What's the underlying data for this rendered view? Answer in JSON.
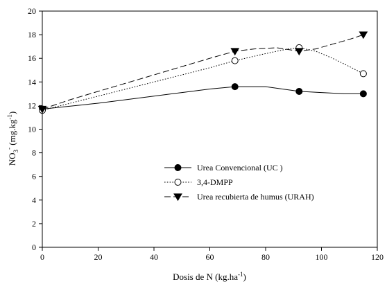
{
  "chart_data": {
    "type": "line",
    "xlabel": "Dosis de N (kg.ha",
    "xlabel_sup": "-1",
    "xlabel_tail": ")",
    "ylabel_main": "NO",
    "ylabel_sub": "3",
    "ylabel_sup": "-",
    "ylabel_tail": " (mg.kg",
    "ylabel_sup2": "-1",
    "ylabel_tail2": ")",
    "xlim": [
      0,
      120
    ],
    "ylim": [
      0,
      20
    ],
    "x_ticks": [
      "0",
      "20",
      "40",
      "60",
      "80",
      "100",
      "120"
    ],
    "y_ticks": [
      "0",
      "2",
      "4",
      "6",
      "8",
      "10",
      "12",
      "14",
      "16",
      "18",
      "20"
    ],
    "grid": false,
    "legend_position": "lower-right",
    "series": [
      {
        "name": "Urea Convencional (UC )",
        "style": "solid",
        "marker": "filled-circle",
        "x": [
          0,
          69,
          92,
          115
        ],
        "y": [
          11.7,
          13.6,
          13.2,
          13.0
        ],
        "curve": [
          [
            0,
            11.7
          ],
          [
            10,
            11.95
          ],
          [
            20,
            12.2
          ],
          [
            30,
            12.5
          ],
          [
            40,
            12.8
          ],
          [
            50,
            13.1
          ],
          [
            60,
            13.4
          ],
          [
            69,
            13.6
          ],
          [
            80,
            13.6
          ],
          [
            86,
            13.4
          ],
          [
            92,
            13.2
          ],
          [
            100,
            13.1
          ],
          [
            108,
            13.0
          ],
          [
            115,
            13.0
          ]
        ]
      },
      {
        "name": "3,4-DMPP",
        "style": "dotted",
        "marker": "open-circle",
        "x": [
          0,
          69,
          92,
          115
        ],
        "y": [
          11.6,
          15.8,
          16.9,
          14.7
        ],
        "curve": [
          [
            0,
            11.6
          ],
          [
            10,
            12.2
          ],
          [
            20,
            12.8
          ],
          [
            30,
            13.4
          ],
          [
            40,
            14.0
          ],
          [
            50,
            14.6
          ],
          [
            60,
            15.2
          ],
          [
            69,
            15.8
          ],
          [
            80,
            16.4
          ],
          [
            88,
            16.8
          ],
          [
            92,
            16.9
          ],
          [
            98,
            16.6
          ],
          [
            104,
            16.0
          ],
          [
            110,
            15.3
          ],
          [
            115,
            14.7
          ]
        ]
      },
      {
        "name": "Urea recubierta de humus (URAH)",
        "style": "dashed",
        "marker": "filled-triangle-down",
        "x": [
          0,
          69,
          92,
          115
        ],
        "y": [
          11.7,
          16.6,
          16.6,
          18.0
        ],
        "curve": [
          [
            0,
            11.7
          ],
          [
            10,
            12.5
          ],
          [
            20,
            13.2
          ],
          [
            30,
            13.9
          ],
          [
            40,
            14.6
          ],
          [
            50,
            15.3
          ],
          [
            60,
            16.0
          ],
          [
            69,
            16.6
          ],
          [
            76,
            16.8
          ],
          [
            84,
            16.9
          ],
          [
            92,
            16.6
          ],
          [
            98,
            16.8
          ],
          [
            104,
            17.2
          ],
          [
            110,
            17.6
          ],
          [
            115,
            18.0
          ]
        ]
      }
    ]
  }
}
